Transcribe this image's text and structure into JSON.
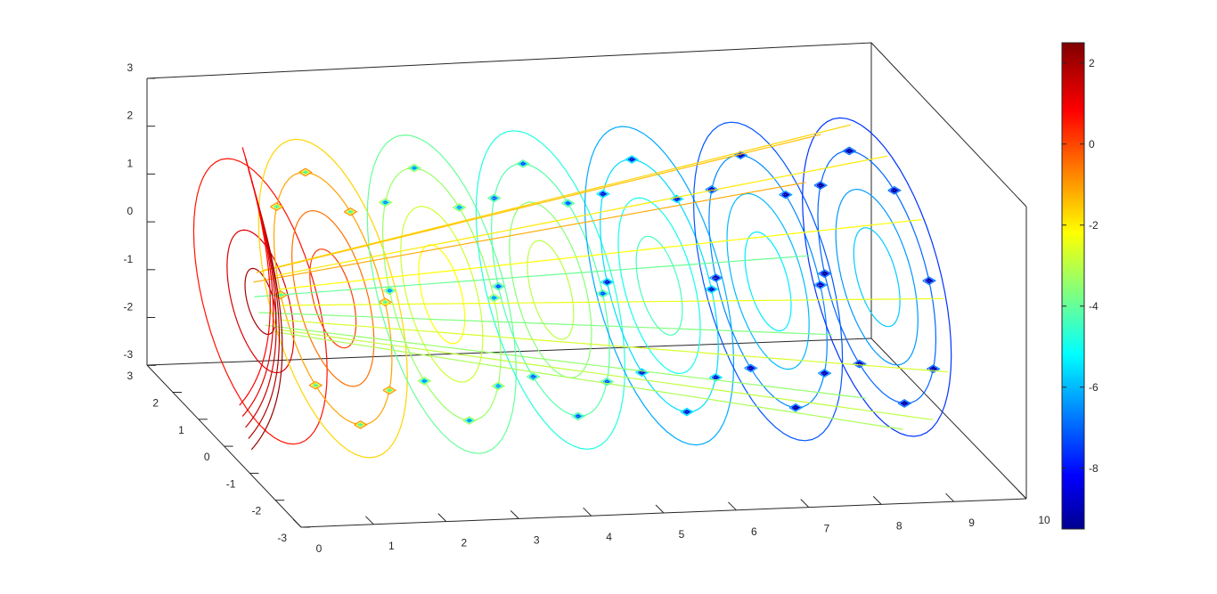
{
  "chart_data": {
    "type": "contour3d",
    "title": "",
    "xlabel": "",
    "ylabel": "",
    "zlabel": "",
    "x_ticks": [
      "0",
      "1",
      "2",
      "3",
      "4",
      "5",
      "6",
      "7",
      "8",
      "9",
      "10"
    ],
    "y_ticks": [
      "-3",
      "-2",
      "-1",
      "0",
      "1",
      "2",
      "3"
    ],
    "z_ticks": [
      "-3",
      "-2",
      "-1",
      "0",
      "1",
      "2",
      "3"
    ],
    "xlim": [
      0,
      10
    ],
    "ylim": [
      -3,
      3
    ],
    "zlim": [
      -3,
      3
    ],
    "colormap": "jet",
    "colorbar": {
      "range": [
        -9.5,
        2.5
      ],
      "ticks": [
        "2",
        "0",
        "-2",
        "-4",
        "-6",
        "-8"
      ],
      "placement": "right"
    },
    "slices": [
      {
        "x": 0.5,
        "level": 2.0
      },
      {
        "x": 1.5,
        "level": 0.3
      },
      {
        "x": 3.0,
        "level": -2.0
      },
      {
        "x": 4.5,
        "level": -2.8
      },
      {
        "x": 6.0,
        "level": -4.2
      },
      {
        "x": 7.5,
        "level": -5.2
      },
      {
        "x": 9.0,
        "level": -5.6
      }
    ],
    "grid": false,
    "box": true
  }
}
